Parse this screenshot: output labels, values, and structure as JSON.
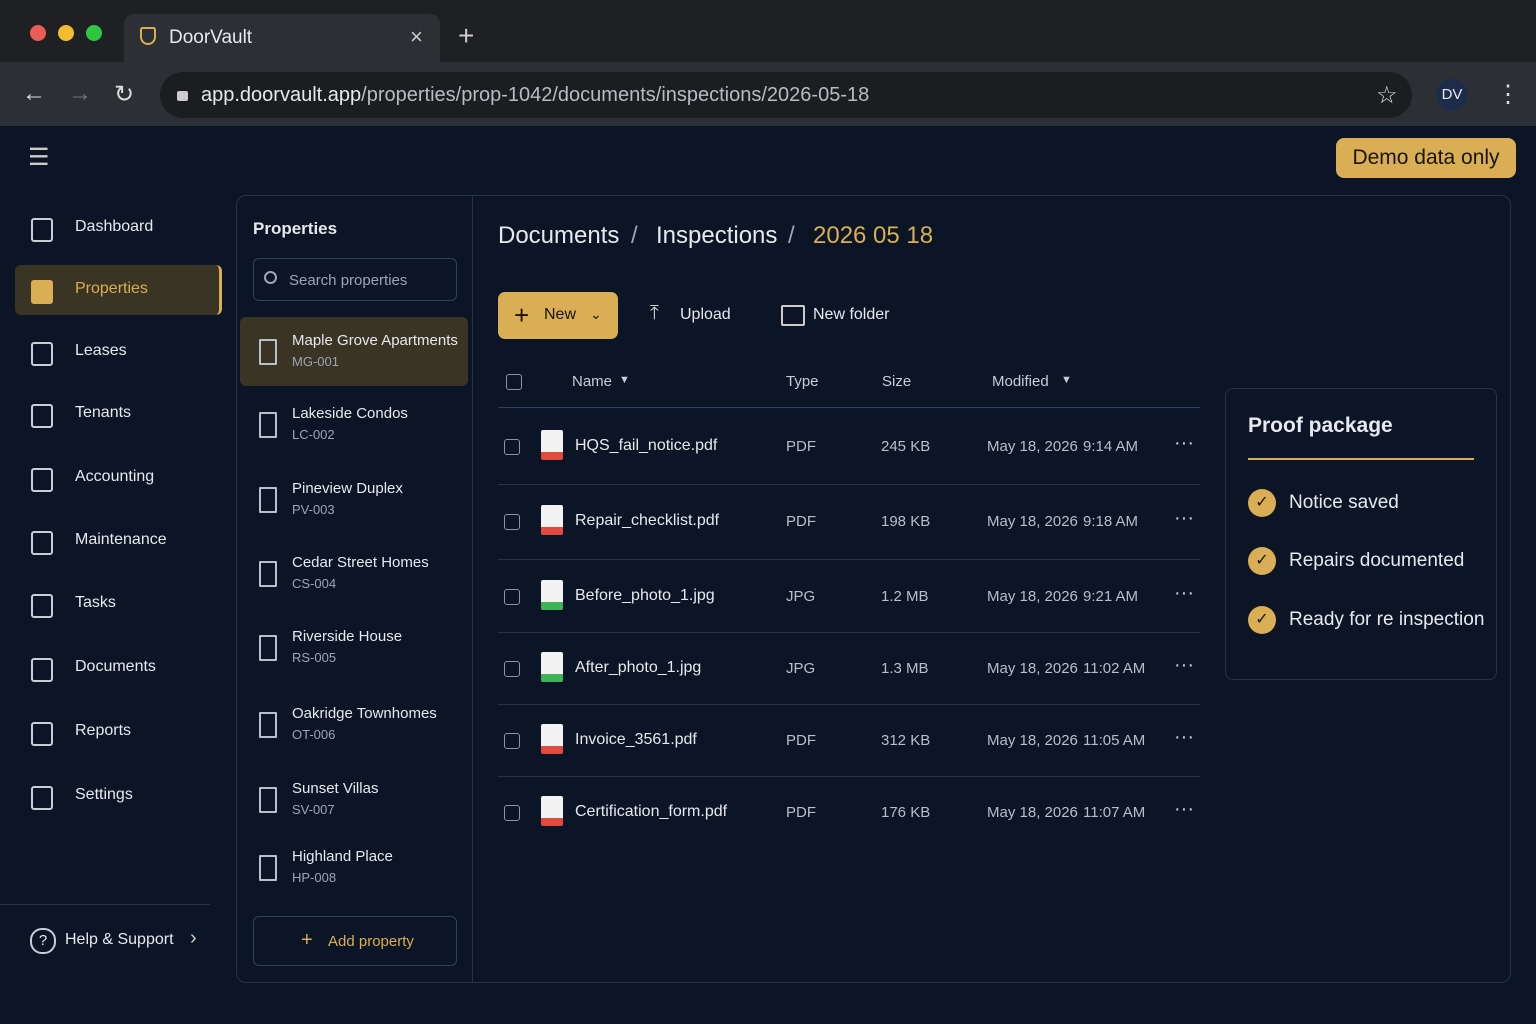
{
  "browser": {
    "tab_title": "DoorVault",
    "url_host": "app.doorvault.app",
    "url_path": "/properties/prop-1042/documents/inspections/2026-05-18",
    "avatar": "DV"
  },
  "header": {
    "badge": "Demo data only"
  },
  "nav": {
    "items": [
      "Dashboard",
      "Properties",
      "Leases",
      "Tenants",
      "Accounting",
      "Maintenance",
      "Tasks",
      "Documents",
      "Reports",
      "Settings"
    ],
    "active": 1,
    "help": "Help & Support"
  },
  "properties": {
    "title": "Properties",
    "search_placeholder": "Search properties",
    "selected": 0,
    "add": "Add property",
    "items": [
      {
        "name": "Maple Grove Apartments",
        "code": "MG-001"
      },
      {
        "name": "Lakeside Condos",
        "code": "LC-002"
      },
      {
        "name": "Pineview Duplex",
        "code": "PV-003"
      },
      {
        "name": "Cedar Street Homes",
        "code": "CS-004"
      },
      {
        "name": "Riverside House",
        "code": "RS-005"
      },
      {
        "name": "Oakridge Townhomes",
        "code": "OT-006"
      },
      {
        "name": "Sunset Villas",
        "code": "SV-007"
      },
      {
        "name": "Highland Place",
        "code": "HP-008"
      }
    ]
  },
  "breadcrumb": [
    "Documents",
    "Inspections",
    "2026 05 18"
  ],
  "toolbar": {
    "new": "New",
    "upload": "Upload",
    "new_folder": "New folder"
  },
  "table": {
    "columns": [
      "Name",
      "Type",
      "Size",
      "Modified"
    ],
    "rows": [
      [
        "HQS_fail_notice.pdf",
        "PDF",
        "245 KB",
        "May 18, 2026",
        "9:14 AM"
      ],
      [
        "Repair_checklist.pdf",
        "PDF",
        "198 KB",
        "May 18, 2026",
        "9:18 AM"
      ],
      [
        "Before_photo_1.jpg",
        "JPG",
        "1.2 MB",
        "May 18, 2026",
        "9:21 AM"
      ],
      [
        "After_photo_1.jpg",
        "JPG",
        "1.3 MB",
        "May 18, 2026",
        "11:02 AM"
      ],
      [
        "Invoice_3561.pdf",
        "PDF",
        "312 KB",
        "May 18, 2026",
        "11:05 AM"
      ],
      [
        "Certification_form.pdf",
        "PDF",
        "176 KB",
        "May 18, 2026",
        "11:07 AM"
      ]
    ]
  },
  "proof": {
    "title": "Proof package",
    "items": [
      "Notice saved",
      "Repairs documented",
      "Ready for re inspection"
    ]
  }
}
